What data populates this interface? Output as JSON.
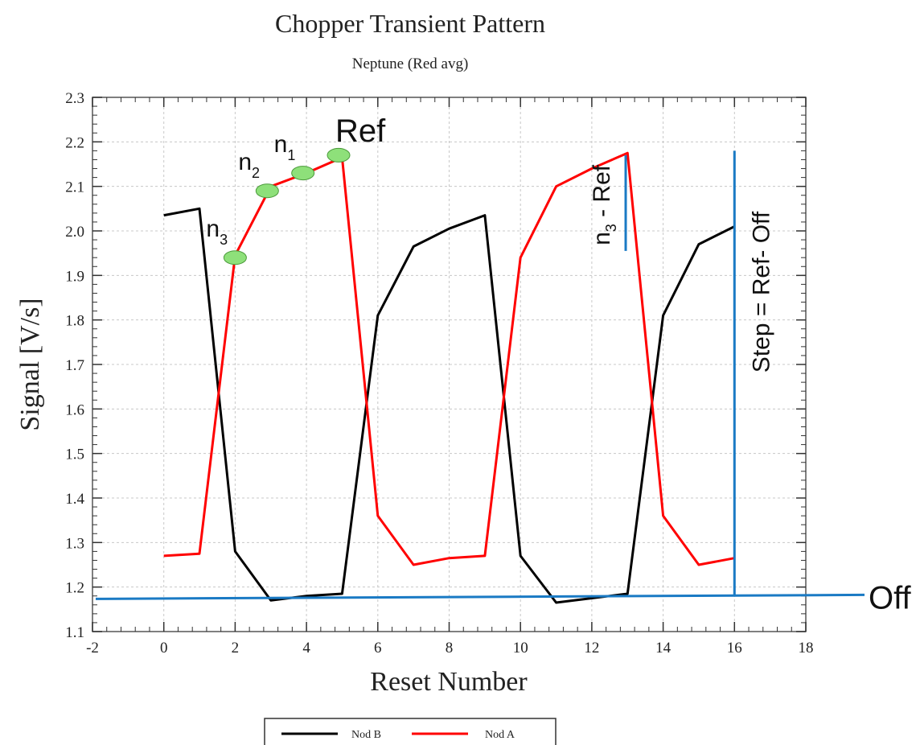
{
  "chart_data": {
    "type": "line",
    "title": "Chopper Transient Pattern",
    "subtitle": "Neptune (Red avg)",
    "xlabel": "Reset Number",
    "ylabel": "Signal [V/s]",
    "xlim": [
      -2,
      18
    ],
    "ylim": [
      1.1,
      2.3
    ],
    "xticks": [
      -2,
      0,
      2,
      4,
      6,
      8,
      10,
      12,
      14,
      16,
      18
    ],
    "yticks": [
      1.1,
      1.2,
      1.3,
      1.4,
      1.5,
      1.6,
      1.7,
      1.8,
      1.9,
      2.0,
      2.1,
      2.2,
      2.3
    ],
    "xtick_labels": [
      "-2",
      "0",
      "2",
      "4",
      "6",
      "8",
      "10",
      "12",
      "14",
      "16",
      "18"
    ],
    "ytick_labels": [
      "1.1",
      "1.2",
      "1.3",
      "1.4",
      "1.5",
      "1.6",
      "1.7",
      "1.8",
      "1.9",
      "2.0",
      "2.1",
      "2.2",
      "2.3"
    ],
    "grid": true,
    "legend_position": "bottom-center",
    "series": [
      {
        "name": "Nod B",
        "color": "#000000",
        "x": [
          0,
          1,
          2,
          3,
          4,
          5,
          6,
          7,
          8,
          9,
          10,
          11,
          12,
          13,
          14,
          15,
          16
        ],
        "y": [
          2.035,
          2.05,
          1.28,
          1.17,
          1.18,
          1.185,
          1.81,
          1.965,
          2.005,
          2.035,
          1.27,
          1.165,
          1.175,
          1.185,
          1.81,
          1.97,
          2.01
        ]
      },
      {
        "name": "Nod A",
        "color": "#ff0000",
        "x": [
          0,
          1,
          2,
          3,
          4,
          5,
          6,
          7,
          8,
          9,
          10,
          11,
          12,
          13,
          14,
          15,
          16
        ],
        "y": [
          1.27,
          1.275,
          1.945,
          2.1,
          2.13,
          2.165,
          1.36,
          1.25,
          1.265,
          1.27,
          1.94,
          2.1,
          2.14,
          2.175,
          1.36,
          1.25,
          1.265
        ]
      }
    ],
    "annotations": {
      "markers": [
        {
          "label": "n",
          "sub": "3",
          "x": 2,
          "y": 1.94
        },
        {
          "label": "n",
          "sub": "2",
          "x": 2.9,
          "y": 2.09
        },
        {
          "label": "n",
          "sub": "1",
          "x": 3.9,
          "y": 2.13
        },
        {
          "label": "Ref",
          "sub": "",
          "x": 4.9,
          "y": 2.17
        }
      ],
      "marker_color": "#8ee07a",
      "blue_color": "#1a7ac4",
      "off_label": "Off",
      "off_level": 1.177,
      "n3_ref_line": {
        "x": 12.95,
        "y_top": 2.17,
        "y_bottom": 1.955
      },
      "n3_ref_label": {
        "pre": "n",
        "sub": "3",
        "post": " - Ref"
      },
      "step_line": {
        "x": 16,
        "y_top": 2.18,
        "y_bottom": 1.18
      },
      "step_label": "Step = Ref- Off"
    }
  }
}
